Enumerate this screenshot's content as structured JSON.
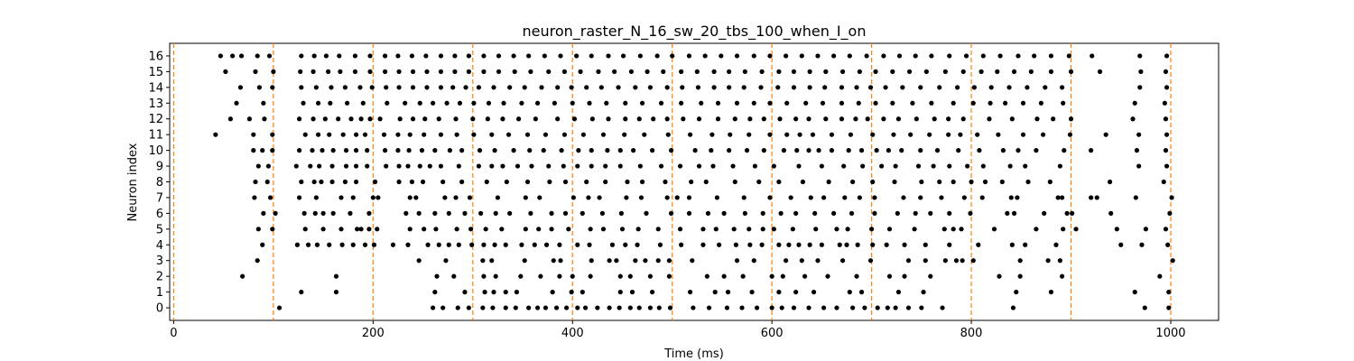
{
  "chart_data": {
    "type": "scatter",
    "title": "neuron_raster_N_16_sw_20_tbs_100_when_I_on",
    "xlabel": "Time (ms)",
    "ylabel": "Neuron index",
    "xlim": [
      -4,
      1048
    ],
    "ylim": [
      -0.8,
      16.8
    ],
    "xticks": [
      0,
      200,
      400,
      600,
      800,
      1000
    ],
    "yticks": [
      0,
      1,
      2,
      3,
      4,
      5,
      6,
      7,
      8,
      9,
      10,
      11,
      12,
      13,
      14,
      15,
      16
    ],
    "grid": false,
    "spike_color": "#000000",
    "marker_lines": {
      "x": [
        0,
        100,
        200,
        300,
        400,
        500,
        600,
        700,
        800,
        900,
        1000
      ],
      "color": "#ff7f0e",
      "style": "dashed"
    },
    "series": [
      {
        "neuron": 0,
        "spikes": [
          106,
          260,
          270,
          285,
          296,
          310,
          320,
          333,
          343,
          356,
          365,
          373,
          384,
          394,
          405,
          413,
          425,
          437,
          447,
          458,
          467,
          478,
          487,
          498,
          521,
          537,
          555,
          570,
          585,
          600,
          610,
          622,
          637,
          652,
          665,
          681,
          693,
          706,
          716,
          724,
          737,
          750,
          771,
          842,
          974,
          998
        ]
      },
      {
        "neuron": 1,
        "spikes": [
          128,
          163,
          262,
          292,
          312,
          321,
          333,
          344,
          380,
          399,
          410,
          448,
          460,
          480,
          518,
          543,
          556,
          580,
          607,
          624,
          642,
          678,
          690,
          727,
          752,
          845,
          880,
          964,
          998
        ]
      },
      {
        "neuron": 2,
        "spikes": [
          69,
          163,
          264,
          281,
          311,
          323,
          348,
          368,
          387,
          400,
          418,
          448,
          458,
          478,
          497,
          535,
          552,
          571,
          600,
          611,
          633,
          656,
          685,
          718,
          733,
          759,
          828,
          849,
          891,
          989
        ]
      },
      {
        "neuron": 3,
        "spikes": [
          84,
          246,
          273,
          310,
          319,
          352,
          381,
          388,
          419,
          437,
          444,
          463,
          473,
          486,
          497,
          520,
          565,
          582,
          614,
          630,
          646,
          671,
          699,
          737,
          754,
          774,
          785,
          791,
          802,
          849,
          877,
          889,
          1002
        ]
      },
      {
        "neuron": 4,
        "spikes": [
          89,
          124,
          135,
          144,
          156,
          169,
          180,
          192,
          201,
          220,
          235,
          255,
          266,
          276,
          286,
          299,
          311,
          322,
          333,
          349,
          362,
          374,
          387,
          405,
          417,
          440,
          453,
          465,
          488,
          509,
          531,
          547,
          564,
          578,
          590,
          607,
          617,
          627,
          638,
          650,
          668,
          675,
          686,
          701,
          715,
          733,
          754,
          778,
          807,
          841,
          854,
          885,
          950,
          971,
          997
        ]
      },
      {
        "neuron": 5,
        "spikes": [
          85,
          99,
          132,
          150,
          168,
          184,
          188,
          196,
          204,
          237,
          251,
          263,
          284,
          298,
          313,
          329,
          353,
          366,
          379,
          396,
          418,
          431,
          450,
          466,
          486,
          508,
          531,
          544,
          562,
          577,
          591,
          602,
          621,
          644,
          665,
          676,
          700,
          718,
          743,
          773,
          782,
          790,
          823,
          865,
          892,
          905,
          946,
          975,
          995
        ]
      },
      {
        "neuron": 6,
        "spikes": [
          90,
          102,
          131,
          142,
          150,
          160,
          177,
          196,
          233,
          246,
          262,
          276,
          292,
          308,
          323,
          337,
          358,
          379,
          393,
          410,
          430,
          449,
          474,
          499,
          517,
          536,
          552,
          573,
          591,
          609,
          624,
          643,
          662,
          680,
          703,
          726,
          744,
          759,
          778,
          799,
          836,
          843,
          873,
          896,
          901,
          940,
          999
        ]
      },
      {
        "neuron": 7,
        "spikes": [
          81,
          97,
          126,
          143,
          168,
          180,
          200,
          205,
          237,
          243,
          272,
          283,
          297,
          325,
          353,
          367,
          401,
          416,
          427,
          454,
          469,
          495,
          505,
          517,
          545,
          572,
          598,
          619,
          639,
          652,
          673,
          688,
          703,
          732,
          749,
          770,
          793,
          811,
          840,
          846,
          887,
          891,
          920,
          926,
          965,
          1001
        ]
      },
      {
        "neuron": 8,
        "spikes": [
          82,
          94,
          128,
          141,
          148,
          159,
          172,
          183,
          202,
          226,
          239,
          250,
          270,
          289,
          314,
          334,
          355,
          377,
          393,
          414,
          433,
          455,
          470,
          493,
          519,
          534,
          563,
          587,
          607,
          631,
          657,
          681,
          701,
          723,
          750,
          768,
          782,
          800,
          814,
          831,
          857,
          879,
          939,
          993
        ]
      },
      {
        "neuron": 9,
        "spikes": [
          85,
          95,
          123,
          137,
          146,
          159,
          173,
          183,
          194,
          213,
          226,
          235,
          247,
          257,
          268,
          286,
          306,
          319,
          330,
          345,
          359,
          376,
          391,
          405,
          419,
          433,
          448,
          468,
          489,
          508,
          527,
          541,
          561,
          583,
          602,
          627,
          650,
          672,
          691,
          710,
          724,
          747,
          762,
          778,
          796,
          812,
          839,
          854,
          889,
          968,
          996
        ]
      },
      {
        "neuron": 10,
        "spikes": [
          80,
          89,
          99,
          126,
          139,
          149,
          160,
          173,
          183,
          194,
          212,
          225,
          236,
          249,
          262,
          277,
          289,
          307,
          322,
          341,
          357,
          371,
          389,
          406,
          419,
          435,
          448,
          461,
          480,
          499,
          523,
          539,
          557,
          575,
          592,
          612,
          625,
          637,
          647,
          660,
          677,
          690,
          705,
          717,
          730,
          749,
          766,
          787,
          808,
          832,
          847,
          865,
          893,
          920,
          966,
          995
        ]
      },
      {
        "neuron": 11,
        "spikes": [
          42,
          80,
          99,
          132,
          145,
          156,
          170,
          183,
          192,
          211,
          225,
          237,
          251,
          268,
          284,
          301,
          319,
          336,
          355,
          373,
          392,
          411,
          431,
          452,
          472,
          496,
          518,
          540,
          558,
          577,
          598,
          615,
          628,
          641,
          660,
          679,
          701,
          722,
          739,
          758,
          777,
          789,
          806,
          827,
          852,
          872,
          899,
          935,
          968,
          996
        ]
      },
      {
        "neuron": 12,
        "spikes": [
          57,
          76,
          91,
          126,
          140,
          152,
          165,
          178,
          188,
          197,
          207,
          227,
          240,
          252,
          266,
          283,
          300,
          315,
          330,
          346,
          363,
          385,
          402,
          420,
          436,
          453,
          467,
          481,
          495,
          511,
          527,
          546,
          563,
          578,
          592,
          608,
          624,
          637,
          654,
          670,
          684,
          696,
          712,
          727,
          745,
          763,
          777,
          792,
          818,
          841,
          866,
          882,
          900,
          962,
          995
        ]
      },
      {
        "neuron": 13,
        "spikes": [
          63,
          90,
          130,
          145,
          157,
          174,
          190,
          214,
          232,
          247,
          260,
          274,
          287,
          301,
          316,
          331,
          349,
          365,
          382,
          400,
          417,
          434,
          453,
          470,
          489,
          509,
          529,
          546,
          565,
          582,
          598,
          615,
          634,
          651,
          670,
          687,
          704,
          721,
          741,
          760,
          782,
          802,
          819,
          834,
          852,
          870,
          892,
          964,
          994
        ]
      },
      {
        "neuron": 14,
        "spikes": [
          67,
          86,
          99,
          128,
          143,
          158,
          172,
          187,
          199,
          213,
          226,
          240,
          254,
          268,
          280,
          293,
          306,
          321,
          337,
          352,
          369,
          385,
          399,
          414,
          429,
          446,
          463,
          478,
          495,
          510,
          526,
          542,
          557,
          572,
          589,
          606,
          622,
          638,
          653,
          670,
          685,
          699,
          714,
          731,
          749,
          768,
          786,
          803,
          820,
          838,
          856,
          874,
          891,
          969,
          996
        ]
      },
      {
        "neuron": 15,
        "spikes": [
          52,
          82,
          100,
          127,
          140,
          155,
          167,
          182,
          197,
          212,
          226,
          240,
          254,
          268,
          282,
          296,
          311,
          326,
          342,
          358,
          376,
          392,
          408,
          426,
          442,
          459,
          475,
          491,
          509,
          525,
          542,
          557,
          573,
          590,
          607,
          622,
          638,
          654,
          671,
          688,
          704,
          721,
          738,
          755,
          774,
          792,
          810,
          826,
          843,
          860,
          880,
          900,
          929,
          970,
          995
        ]
      },
      {
        "neuron": 16,
        "spikes": [
          47,
          59,
          68,
          84,
          96,
          128,
          141,
          153,
          166,
          182,
          197,
          212,
          225,
          239,
          253,
          268,
          282,
          296,
          311,
          326,
          341,
          356,
          372,
          388,
          404,
          419,
          436,
          451,
          468,
          485,
          500,
          517,
          533,
          549,
          565,
          582,
          598,
          614,
          630,
          646,
          662,
          678,
          695,
          712,
          728,
          744,
          760,
          778,
          795,
          812,
          829,
          847,
          863,
          880,
          898,
          921,
          969,
          996
        ]
      }
    ]
  }
}
